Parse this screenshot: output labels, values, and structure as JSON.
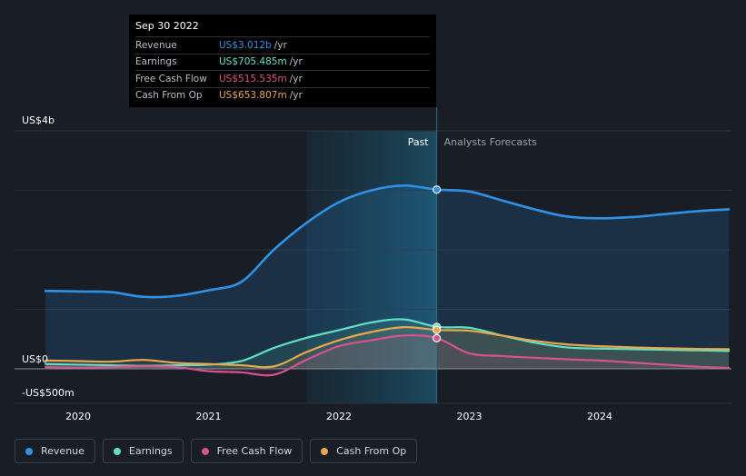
{
  "chart_data": {
    "type": "area",
    "x_ticks": [
      "2020",
      "2021",
      "2022",
      "2023",
      "2024"
    ],
    "y_tick_labels": [
      "US$4b",
      "US$0",
      "-US$500m"
    ],
    "ylim": [
      -500,
      4000
    ],
    "y_unit": "US$m",
    "xlim": [
      2019.75,
      2024.99
    ],
    "divider_x": 2022.75,
    "past_label": "Past",
    "forecast_label": "Analysts Forecasts",
    "highlight_start": 2021.75,
    "series": [
      {
        "name": "Revenue",
        "color": "#2e93e6",
        "area": true,
        "points": [
          [
            2019.75,
            1310
          ],
          [
            2020.0,
            1300
          ],
          [
            2020.25,
            1290
          ],
          [
            2020.5,
            1210
          ],
          [
            2020.75,
            1225
          ],
          [
            2021.0,
            1320
          ],
          [
            2021.25,
            1460
          ],
          [
            2021.5,
            2000
          ],
          [
            2021.75,
            2450
          ],
          [
            2022.0,
            2800
          ],
          [
            2022.25,
            3000
          ],
          [
            2022.5,
            3080
          ],
          [
            2022.75,
            3012
          ],
          [
            2023.0,
            2980
          ],
          [
            2023.25,
            2830
          ],
          [
            2023.5,
            2680
          ],
          [
            2023.75,
            2560
          ],
          [
            2024.0,
            2530
          ],
          [
            2024.25,
            2550
          ],
          [
            2024.5,
            2600
          ],
          [
            2024.75,
            2650
          ],
          [
            2024.99,
            2680
          ]
        ]
      },
      {
        "name": "Earnings",
        "color": "#5fe0c6",
        "area": true,
        "points": [
          [
            2019.75,
            80
          ],
          [
            2020.0,
            70
          ],
          [
            2020.25,
            60
          ],
          [
            2020.5,
            50
          ],
          [
            2020.75,
            60
          ],
          [
            2021.0,
            70
          ],
          [
            2021.25,
            130
          ],
          [
            2021.5,
            350
          ],
          [
            2021.75,
            520
          ],
          [
            2022.0,
            650
          ],
          [
            2022.25,
            780
          ],
          [
            2022.5,
            830
          ],
          [
            2022.75,
            705
          ],
          [
            2023.0,
            690
          ],
          [
            2023.25,
            560
          ],
          [
            2023.5,
            440
          ],
          [
            2023.75,
            360
          ],
          [
            2024.0,
            340
          ],
          [
            2024.25,
            330
          ],
          [
            2024.5,
            320
          ],
          [
            2024.75,
            310
          ],
          [
            2024.99,
            300
          ]
        ]
      },
      {
        "name": "Free Cash Flow",
        "color": "#d9528f",
        "area": true,
        "points": [
          [
            2019.75,
            30
          ],
          [
            2020.0,
            20
          ],
          [
            2020.25,
            30
          ],
          [
            2020.5,
            40
          ],
          [
            2020.75,
            30
          ],
          [
            2021.0,
            -40
          ],
          [
            2021.25,
            -60
          ],
          [
            2021.5,
            -100
          ],
          [
            2021.75,
            150
          ],
          [
            2022.0,
            380
          ],
          [
            2022.25,
            480
          ],
          [
            2022.5,
            560
          ],
          [
            2022.75,
            515.535
          ],
          [
            2023.0,
            260
          ],
          [
            2023.25,
            215
          ],
          [
            2023.5,
            185
          ],
          [
            2023.75,
            160
          ],
          [
            2024.0,
            140
          ],
          [
            2024.25,
            105
          ],
          [
            2024.5,
            70
          ],
          [
            2024.75,
            35
          ],
          [
            2024.99,
            15
          ]
        ]
      },
      {
        "name": "Cash From Op",
        "color": "#e9a84c",
        "area": true,
        "points": [
          [
            2019.75,
            140
          ],
          [
            2020.0,
            130
          ],
          [
            2020.25,
            120
          ],
          [
            2020.5,
            150
          ],
          [
            2020.75,
            100
          ],
          [
            2021.0,
            80
          ],
          [
            2021.25,
            60
          ],
          [
            2021.5,
            40
          ],
          [
            2021.75,
            280
          ],
          [
            2022.0,
            480
          ],
          [
            2022.25,
            620
          ],
          [
            2022.5,
            700
          ],
          [
            2022.75,
            653.807
          ],
          [
            2023.0,
            640
          ],
          [
            2023.25,
            560
          ],
          [
            2023.5,
            470
          ],
          [
            2023.75,
            410
          ],
          [
            2024.0,
            380
          ],
          [
            2024.25,
            360
          ],
          [
            2024.5,
            345
          ],
          [
            2024.75,
            335
          ],
          [
            2024.99,
            330
          ]
        ]
      }
    ],
    "tooltip": {
      "date": "Sep 30 2022",
      "unit": "/yr",
      "rows": [
        {
          "label": "Revenue",
          "value": "US$3.012b",
          "color": "#2e93e6"
        },
        {
          "label": "Earnings",
          "value": "US$705.485m",
          "color": "#5fe0c6"
        },
        {
          "label": "Free Cash Flow",
          "value": "US$515.535m",
          "color": "#d9528f"
        },
        {
          "label": "Cash From Op",
          "value": "US$653.807m",
          "color": "#e9a84c"
        }
      ]
    },
    "legend": [
      {
        "label": "Revenue",
        "color": "#2e93e6"
      },
      {
        "label": "Earnings",
        "color": "#5fe0c6"
      },
      {
        "label": "Free Cash Flow",
        "color": "#d9528f"
      },
      {
        "label": "Cash From Op",
        "color": "#e9a84c"
      }
    ]
  }
}
